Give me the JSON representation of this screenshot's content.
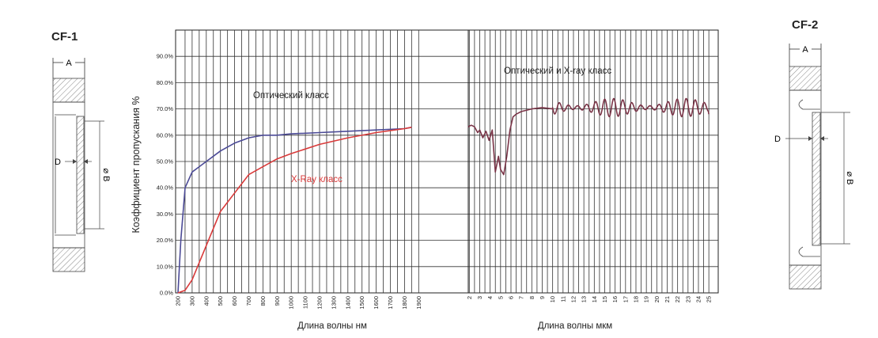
{
  "drawings": {
    "left": {
      "title": "CF-1",
      "label_a": "A",
      "label_b": "⌀ B",
      "label_d": "D"
    },
    "right": {
      "title": "CF-2",
      "label_a": "A",
      "label_b": "⌀ B",
      "label_d": "D"
    }
  },
  "chart_data": {
    "type": "line",
    "title": "",
    "ylabel": "Коэффициент пропускания %",
    "xlabel_nm": "Длина волны нм",
    "xlabel_um": "Длина волны мкм",
    "ylim": [
      0,
      100
    ],
    "y_ticks": [
      "0.0%",
      "10.0%",
      "20.0%",
      "30.0%",
      "40.0%",
      "50.0%",
      "60.0%",
      "70.0%",
      "80.0%",
      "90.0%"
    ],
    "x_ticks_nm": [
      "200",
      "300",
      "400",
      "500",
      "600",
      "700",
      "800",
      "900",
      "1000",
      "1100",
      "1200",
      "1300",
      "1400",
      "1500",
      "1600",
      "1700",
      "1800",
      "1900"
    ],
    "x_ticks_um": [
      "2",
      "3",
      "4",
      "5",
      "6",
      "7",
      "8",
      "9",
      "10",
      "11",
      "12",
      "13",
      "14",
      "15",
      "16",
      "17",
      "18",
      "19",
      "20",
      "21",
      "22",
      "23",
      "24",
      "25"
    ],
    "grid": true,
    "annotations": [
      "Оптический класс",
      "X-Ray класс",
      "Оптический и X-ray класс"
    ],
    "colors": {
      "optical": "#4b4a96",
      "xray": "#d93a3a",
      "combined": "#7a3447"
    },
    "series": [
      {
        "name": "Оптический класс",
        "segment": "nm",
        "x": [
          200,
          220,
          250,
          300,
          400,
          500,
          600,
          700,
          800,
          900,
          1000,
          1200,
          1400,
          1600,
          1800,
          1850
        ],
        "y": [
          0,
          20,
          40,
          46,
          50,
          54,
          57,
          59,
          60,
          60,
          60.5,
          61,
          61.5,
          62,
          62.5,
          63
        ]
      },
      {
        "name": "X-Ray класс",
        "segment": "nm",
        "x": [
          200,
          250,
          300,
          400,
          500,
          600,
          700,
          800,
          900,
          1000,
          1200,
          1400,
          1600,
          1800,
          1850
        ],
        "y": [
          0,
          1,
          5,
          18,
          31,
          38,
          45,
          48,
          51,
          53,
          56.5,
          59,
          61,
          62.5,
          63
        ]
      },
      {
        "name": "Оптический и X-ray класс",
        "segment": "um",
        "x": [
          1.9,
          2,
          2.2,
          2.5,
          2.8,
          3,
          3.3,
          3.6,
          3.9,
          4.2,
          4.5,
          4.8,
          5,
          5.3,
          5.6,
          5.9,
          6.2,
          6.5,
          7,
          8,
          9,
          10,
          11,
          12,
          13,
          14,
          15,
          16,
          17,
          18,
          19,
          20,
          21,
          22,
          23,
          24,
          25
        ],
        "y": [
          63,
          63.5,
          63.8,
          63.2,
          61,
          62,
          59,
          61.5,
          58,
          62,
          46,
          52,
          47,
          45,
          52,
          62,
          67,
          68,
          69,
          70,
          70.5,
          70,
          71,
          70.5,
          71,
          70.5,
          70,
          71,
          70.5,
          70,
          71,
          70.5,
          70,
          71,
          70,
          71,
          68
        ],
        "oscillation_from_um": 10,
        "oscillation_amplitude": 3.5
      }
    ]
  }
}
